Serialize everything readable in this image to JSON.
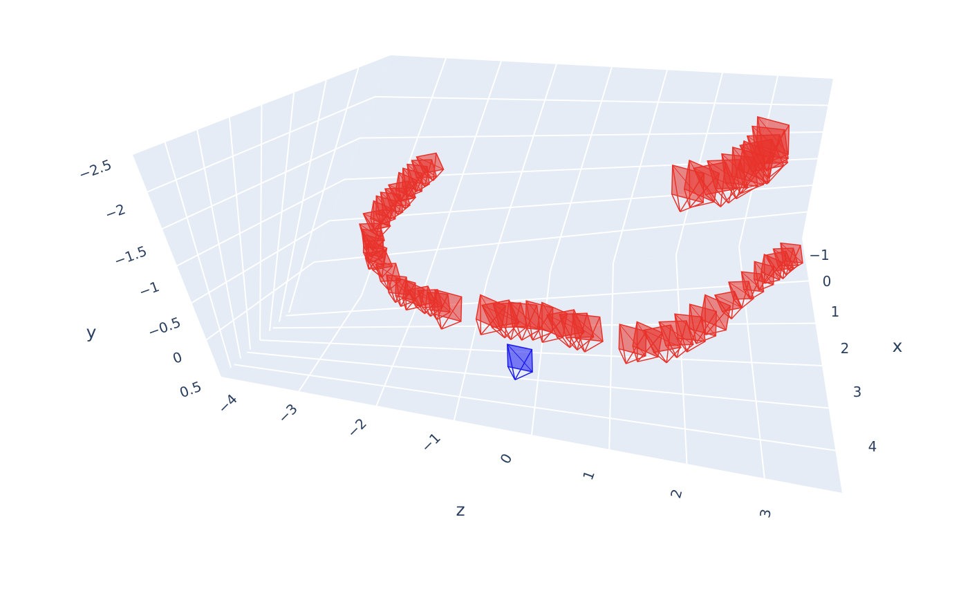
{
  "chart_data": {
    "type": "scatter3d",
    "title": "",
    "axes": {
      "x": {
        "label": "x",
        "ticks": [
          "−1",
          "0",
          "1",
          "2",
          "3",
          "4"
        ]
      },
      "y": {
        "label": "y",
        "ticks": [
          "−2.5",
          "−2",
          "−1.5",
          "−1",
          "−0.5",
          "0",
          "0.5"
        ]
      },
      "z": {
        "label": "z",
        "ticks": [
          "−4",
          "−3",
          "−2",
          "−1",
          "0",
          "1",
          "2",
          "3"
        ]
      }
    },
    "background_color": "#e5ecf6",
    "series": [
      {
        "marker": "camera-frustum",
        "color": "#e8322a",
        "count": 60
      },
      {
        "marker": "camera-frustum",
        "color": "#1a1aee",
        "count": 1
      }
    ]
  }
}
